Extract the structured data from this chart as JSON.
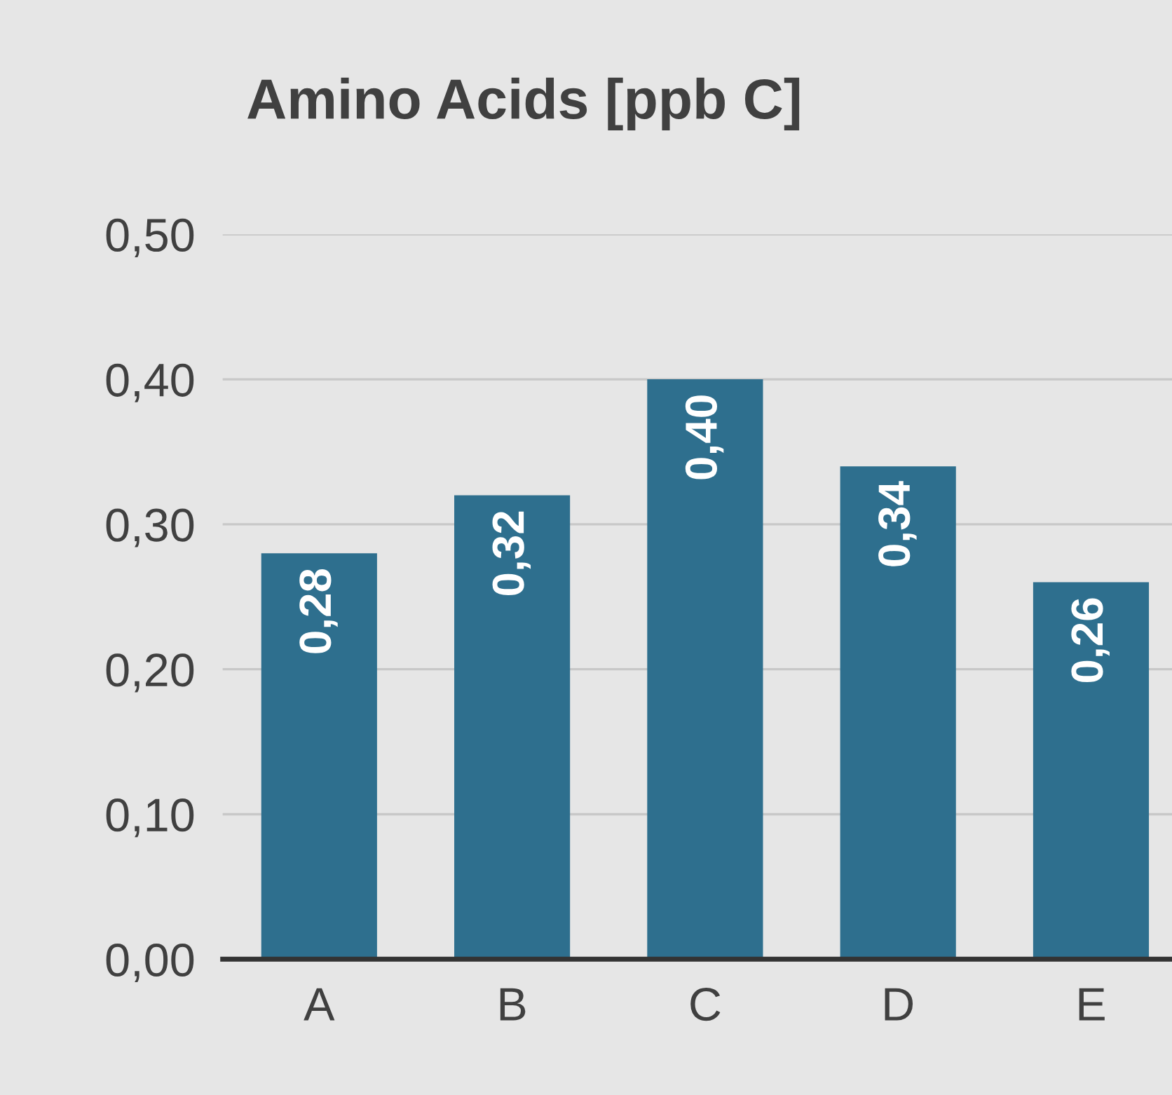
{
  "chart_data": {
    "type": "bar",
    "title": "Amino Acids [ppb C]",
    "categories": [
      "A",
      "B",
      "C",
      "D",
      "E"
    ],
    "values": [
      0.28,
      0.32,
      0.4,
      0.34,
      0.26
    ],
    "value_labels": [
      "0,28",
      "0,32",
      "0,40",
      "0,34",
      "0,26"
    ],
    "color": "#2e6f8e",
    "ylim": [
      0,
      0.5
    ],
    "yticks": [
      {
        "value": 0,
        "label": "0,00"
      },
      {
        "value": 0.1,
        "label": "0,10"
      },
      {
        "value": 0.2,
        "label": "0,20"
      },
      {
        "value": 0.3,
        "label": "0,30"
      },
      {
        "value": 0.4,
        "label": "0,40"
      },
      {
        "value": 0.5,
        "label": "0,50"
      }
    ],
    "grid": "y",
    "legend": false
  }
}
